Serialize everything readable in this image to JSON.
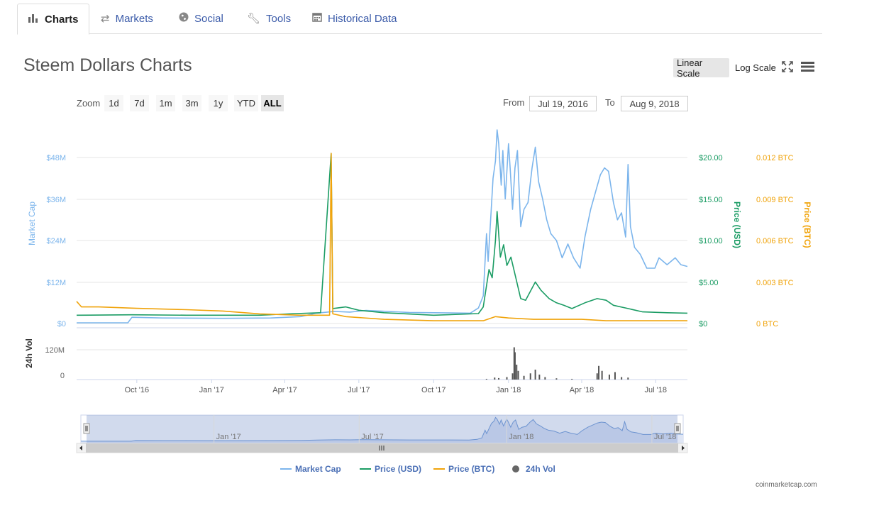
{
  "tabs": [
    {
      "label": "Charts",
      "icon": "bar-chart-icon",
      "active": true
    },
    {
      "label": "Markets",
      "icon": "exchange-arrows-icon",
      "active": false
    },
    {
      "label": "Social",
      "icon": "globe-icon",
      "active": false
    },
    {
      "label": "Tools",
      "icon": "wrench-icon",
      "active": false
    },
    {
      "label": "Historical Data",
      "icon": "calendar-icon",
      "active": false
    }
  ],
  "page_title": "Steem Dollars Charts",
  "scale": {
    "linear": "Linear Scale",
    "log": "Log Scale",
    "selected": "linear"
  },
  "zoom": {
    "label": "Zoom",
    "buttons": [
      "1d",
      "7d",
      "1m",
      "3m",
      "1y",
      "YTD",
      "ALL"
    ],
    "selected": "ALL"
  },
  "range": {
    "from_label": "From",
    "from": "Jul 19, 2016",
    "to_label": "To",
    "to": "Aug 9, 2018"
  },
  "credit": "coinmarketcap.com",
  "colors": {
    "market_cap": "#7cb5ec",
    "price_usd": "#1b9c64",
    "price_btc": "#f0a30a",
    "volume": "#555555"
  },
  "chart_data": {
    "type": "line",
    "x_ticks": [
      "Oct '16",
      "Jan '17",
      "Apr '17",
      "Jul '17",
      "Oct '17",
      "Jan '18",
      "Apr '18",
      "Jul '18"
    ],
    "axes": {
      "market_cap": {
        "label": "Market Cap",
        "ticks": [
          "$0",
          "$12M",
          "$24M",
          "$36M",
          "$48M"
        ],
        "range": [
          0,
          48000000
        ]
      },
      "price_usd": {
        "label": "Price (USD)",
        "ticks": [
          "$0",
          "$5.00",
          "$10.00",
          "$15.00",
          "$20.00"
        ],
        "range": [
          0,
          20
        ]
      },
      "price_btc": {
        "label": "Price (BTC)",
        "ticks": [
          "0 BTC",
          "0.003 BTC",
          "0.006 BTC",
          "0.009 BTC",
          "0.012 BTC"
        ],
        "range": [
          0,
          0.012
        ]
      },
      "volume": {
        "label": "24h Vol",
        "ticks": [
          "0",
          "120M"
        ],
        "range": [
          0,
          120000000
        ]
      }
    },
    "series": [
      {
        "name": "Market Cap",
        "axis": "market_cap",
        "points": [
          [
            "2016-07-19",
            200000.0
          ],
          [
            "2016-09-20",
            200000.0
          ],
          [
            "2016-09-25",
            1800000.0
          ],
          [
            "2016-11-01",
            1600000.0
          ],
          [
            "2017-01-15",
            1500000.0
          ],
          [
            "2017-03-15",
            1600000.0
          ],
          [
            "2017-04-20",
            2000000.0
          ],
          [
            "2017-05-10",
            3000000.0
          ],
          [
            "2017-06-01",
            3500000.0
          ],
          [
            "2017-06-20",
            3300000.0
          ],
          [
            "2017-07-10",
            3800000.0
          ],
          [
            "2017-09-01",
            3200000.0
          ],
          [
            "2017-11-15",
            3000000.0
          ],
          [
            "2017-11-25",
            4500000.0
          ],
          [
            "2017-12-01",
            8000000.0
          ],
          [
            "2017-12-05",
            26000000.0
          ],
          [
            "2017-12-07",
            18000000.0
          ],
          [
            "2017-12-10",
            30000000.0
          ],
          [
            "2017-12-13",
            42000000.0
          ],
          [
            "2017-12-16",
            47000000.0
          ],
          [
            "2017-12-18",
            56000000.0
          ],
          [
            "2017-12-20",
            52000000.0
          ],
          [
            "2017-12-23",
            40000000.0
          ],
          [
            "2017-12-25",
            50000000.0
          ],
          [
            "2017-12-28",
            36000000.0
          ],
          [
            "2018-01-01",
            52000000.0
          ],
          [
            "2018-01-03",
            45000000.0
          ],
          [
            "2018-01-06",
            33000000.0
          ],
          [
            "2018-01-09",
            45000000.0
          ],
          [
            "2018-01-12",
            50000000.0
          ],
          [
            "2018-01-16",
            28000000.0
          ],
          [
            "2018-01-20",
            33000000.0
          ],
          [
            "2018-01-25",
            35000000.0
          ],
          [
            "2018-01-30",
            45000000.0
          ],
          [
            "2018-02-03",
            51000000.0
          ],
          [
            "2018-02-07",
            41000000.0
          ],
          [
            "2018-02-12",
            36000000.0
          ],
          [
            "2018-02-17",
            30000000.0
          ],
          [
            "2018-02-22",
            26000000.0
          ],
          [
            "2018-03-01",
            24000000.0
          ],
          [
            "2018-03-08",
            19000000.0
          ],
          [
            "2018-03-15",
            23000000.0
          ],
          [
            "2018-03-22",
            19000000.0
          ],
          [
            "2018-03-30",
            16000000.0
          ],
          [
            "2018-04-05",
            25000000.0
          ],
          [
            "2018-04-12",
            33000000.0
          ],
          [
            "2018-04-18",
            38000000.0
          ],
          [
            "2018-04-24",
            43000000.0
          ],
          [
            "2018-04-29",
            45000000.0
          ],
          [
            "2018-05-04",
            44000000.0
          ],
          [
            "2018-05-10",
            35000000.0
          ],
          [
            "2018-05-15",
            30000000.0
          ],
          [
            "2018-05-20",
            32000000.0
          ],
          [
            "2018-05-25",
            25000000.0
          ],
          [
            "2018-05-28",
            46000000.0
          ],
          [
            "2018-05-31",
            28000000.0
          ],
          [
            "2018-06-05",
            22000000.0
          ],
          [
            "2018-06-12",
            20000000.0
          ],
          [
            "2018-06-20",
            16000000.0
          ],
          [
            "2018-06-30",
            16000000.0
          ],
          [
            "2018-07-05",
            19000000.0
          ],
          [
            "2018-07-15",
            17000000.0
          ],
          [
            "2018-07-25",
            19000000.0
          ],
          [
            "2018-08-01",
            17000000.0
          ],
          [
            "2018-08-09",
            16500000.0
          ]
        ]
      },
      {
        "name": "Price (USD)",
        "axis": "price_usd",
        "points": [
          [
            "2016-07-19",
            1.0
          ],
          [
            "2016-09-25",
            1.05
          ],
          [
            "2016-12-01",
            1.0
          ],
          [
            "2017-03-01",
            1.0
          ],
          [
            "2017-04-15",
            1.2
          ],
          [
            "2017-05-15",
            1.3
          ],
          [
            "2017-05-28",
            20.5
          ],
          [
            "2017-05-30",
            1.8
          ],
          [
            "2017-06-15",
            2.0
          ],
          [
            "2017-07-01",
            1.6
          ],
          [
            "2017-08-01",
            1.3
          ],
          [
            "2017-10-01",
            1.0
          ],
          [
            "2017-11-25",
            1.2
          ],
          [
            "2017-12-01",
            2.0
          ],
          [
            "2017-12-08",
            6.5
          ],
          [
            "2017-12-12",
            5.5
          ],
          [
            "2017-12-16",
            10.0
          ],
          [
            "2017-12-18",
            13.5
          ],
          [
            "2017-12-22",
            8.0
          ],
          [
            "2017-12-26",
            9.5
          ],
          [
            "2017-12-30",
            7.0
          ],
          [
            "2018-01-04",
            8.0
          ],
          [
            "2018-01-10",
            5.5
          ],
          [
            "2018-01-16",
            3.0
          ],
          [
            "2018-01-22",
            2.8
          ],
          [
            "2018-02-03",
            5.0
          ],
          [
            "2018-02-10",
            4.0
          ],
          [
            "2018-02-20",
            3.0
          ],
          [
            "2018-03-01",
            2.5
          ],
          [
            "2018-03-10",
            2.2
          ],
          [
            "2018-03-20",
            1.8
          ],
          [
            "2018-04-05",
            2.5
          ],
          [
            "2018-04-20",
            3.0
          ],
          [
            "2018-05-01",
            2.8
          ],
          [
            "2018-05-10",
            2.2
          ],
          [
            "2018-05-28",
            1.8
          ],
          [
            "2018-06-15",
            1.4
          ],
          [
            "2018-07-15",
            1.3
          ],
          [
            "2018-08-09",
            1.25
          ]
        ]
      },
      {
        "name": "Price (BTC)",
        "axis": "price_btc",
        "points": [
          [
            "2016-07-19",
            0.0016
          ],
          [
            "2016-07-25",
            0.0012
          ],
          [
            "2016-08-15",
            0.0012
          ],
          [
            "2016-10-01",
            0.0011
          ],
          [
            "2016-12-01",
            0.001
          ],
          [
            "2017-01-15",
            0.0009
          ],
          [
            "2017-03-01",
            0.0007
          ],
          [
            "2017-04-20",
            0.0006
          ],
          [
            "2017-05-26",
            0.0006
          ],
          [
            "2017-05-28",
            0.0123
          ],
          [
            "2017-05-30",
            0.0007
          ],
          [
            "2017-06-15",
            0.0005
          ],
          [
            "2017-08-01",
            0.0003
          ],
          [
            "2017-10-01",
            0.0002
          ],
          [
            "2017-12-01",
            0.0002
          ],
          [
            "2017-12-16",
            0.0005
          ],
          [
            "2018-01-01",
            0.0004
          ],
          [
            "2018-02-01",
            0.0003
          ],
          [
            "2018-04-01",
            0.0003
          ],
          [
            "2018-05-01",
            0.0002
          ],
          [
            "2018-08-09",
            0.0002
          ]
        ]
      },
      {
        "name": "24h Vol",
        "axis": "volume",
        "type": "column",
        "points": [
          [
            "2017-12-05",
            3000000.0
          ],
          [
            "2017-12-15",
            8000000.0
          ],
          [
            "2017-12-20",
            6000000.0
          ],
          [
            "2017-12-30",
            10000000.0
          ],
          [
            "2018-01-06",
            25000000.0
          ],
          [
            "2018-01-08",
            130000000.0
          ],
          [
            "2018-01-09",
            110000000.0
          ],
          [
            "2018-01-11",
            60000000.0
          ],
          [
            "2018-01-13",
            35000000.0
          ],
          [
            "2018-01-20",
            15000000.0
          ],
          [
            "2018-01-28",
            25000000.0
          ],
          [
            "2018-02-03",
            40000000.0
          ],
          [
            "2018-02-08",
            20000000.0
          ],
          [
            "2018-02-15",
            10000000.0
          ],
          [
            "2018-03-01",
            5000000.0
          ],
          [
            "2018-03-20",
            3000000.0
          ],
          [
            "2018-04-20",
            25000000.0
          ],
          [
            "2018-04-22",
            55000000.0
          ],
          [
            "2018-04-26",
            35000000.0
          ],
          [
            "2018-05-05",
            20000000.0
          ],
          [
            "2018-05-12",
            30000000.0
          ],
          [
            "2018-05-20",
            10000000.0
          ],
          [
            "2018-05-28",
            8000000.0
          ]
        ]
      }
    ],
    "navigator_ticks": [
      "Jan '17",
      "Jul '17",
      "Jan '18",
      "Jul '18"
    ],
    "legend": {
      "placement": "bottom",
      "items": [
        "Market Cap",
        "Price (USD)",
        "Price (BTC)",
        "24h Vol"
      ]
    }
  }
}
